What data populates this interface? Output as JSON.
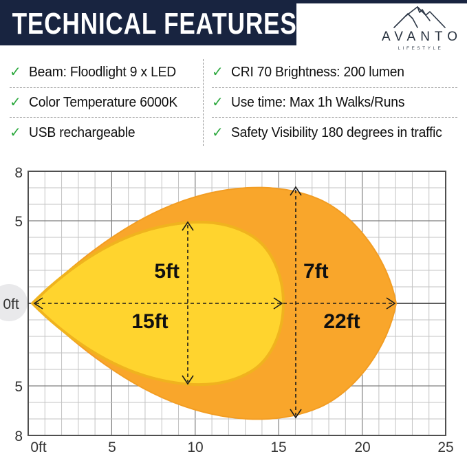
{
  "header": {
    "title": "TECHNICAL FEATURES",
    "brand_name": "AVANTO",
    "brand_subtitle": "LIFESTYLE"
  },
  "icons": {
    "check": "✓",
    "mountains": "mountain-peaks line art",
    "origin_marker": "gray circle at beam origin"
  },
  "colors": {
    "navy": "#182440",
    "check_green": "#2BA83D",
    "outer_beam_orange": "#F9A62B",
    "inner_beam_yellow": "#FFD42E"
  },
  "features": {
    "left": [
      "Beam: Floodlight 9 x LED",
      "Color Temperature 6000K",
      "USB rechargeable"
    ],
    "right": [
      "CRI 70 Brightness: 200 lumen",
      "Use time: Max 1h Walks/Runs",
      "Safety Visibility 180 degrees in traffic"
    ]
  },
  "chart_data": {
    "type": "area",
    "xlim": [
      0,
      25
    ],
    "ylim": [
      -8,
      8
    ],
    "grid": true,
    "x_ticks": [
      "0ft",
      "5",
      "10",
      "15",
      "20",
      "25"
    ],
    "y_ticks": [
      "8",
      "5",
      "0ft",
      "5",
      "8"
    ],
    "series": [
      {
        "name": "outer flood beam",
        "color": "#F9A62B",
        "reach_ft": 22,
        "reach_label": "22ft",
        "max_width_ft": 7,
        "width_label": "7ft"
      },
      {
        "name": "inner center beam",
        "color": "#FFD42E",
        "reach_ft": 15,
        "reach_label": "15ft",
        "max_width_ft": 5,
        "width_label": "5ft"
      }
    ]
  }
}
